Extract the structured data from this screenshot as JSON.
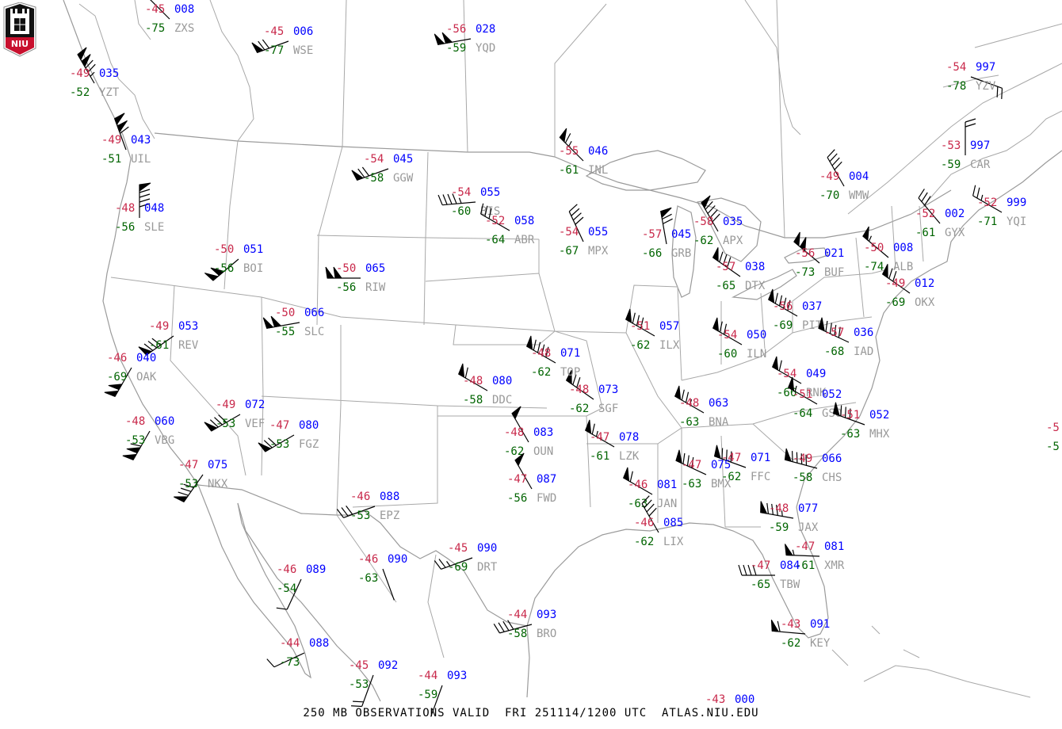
{
  "title": "250 MB OBSERVATIONS VALID  FRI 251114/1200 UTC  ATLAS.NIU.EDU",
  "logo": {
    "text": "NIU",
    "colors": {
      "shield": "#111111",
      "band": "#c8102e"
    }
  },
  "colors": {
    "temperature": "#c8284a",
    "height": "#0000ff",
    "dewpoint": "#006400",
    "station_id": "#999999",
    "map_lines": "#9a9a9a",
    "wind_barb": "#000000"
  },
  "stations": [
    {
      "id": "ZXS",
      "temp": "-45",
      "height": "008",
      "dewpoint": "-75",
      "wind_dir": 315,
      "wind_kt": 20
    },
    {
      "id": "WSE",
      "temp": "-45",
      "height": "006",
      "dewpoint": "-77",
      "wind_dir": 250,
      "wind_kt": 70
    },
    {
      "id": "YQD",
      "temp": "-56",
      "height": "028",
      "dewpoint": "-59",
      "wind_dir": 260,
      "wind_kt": 100
    },
    {
      "id": "YZT",
      "temp": "-49",
      "height": "035",
      "dewpoint": "-52",
      "wind_dir": 330,
      "wind_kt": 125
    },
    {
      "id": "UIL",
      "temp": "-49",
      "height": "043",
      "dewpoint": "-51",
      "wind_dir": 340,
      "wind_kt": 110
    },
    {
      "id": "SLE",
      "temp": "-48",
      "height": "048",
      "dewpoint": "-56",
      "wind_dir": 360,
      "wind_kt": 90
    },
    {
      "id": "GGW",
      "temp": "-54",
      "height": "045",
      "dewpoint": "-58",
      "wind_dir": 250,
      "wind_kt": 70
    },
    {
      "id": "BIS",
      "temp": "-54",
      "height": "055",
      "dewpoint": "-60",
      "wind_dir": 265,
      "wind_kt": 45
    },
    {
      "id": "ABR",
      "temp": "-52",
      "height": "058",
      "dewpoint": "-64",
      "wind_dir": 300,
      "wind_kt": 30
    },
    {
      "id": "INL",
      "temp": "-55",
      "height": "046",
      "dewpoint": "-61",
      "wind_dir": 315,
      "wind_kt": 65
    },
    {
      "id": "MPX",
      "temp": "-54",
      "height": "055",
      "dewpoint": "-67",
      "wind_dir": 335,
      "wind_kt": 40
    },
    {
      "id": "GRB",
      "temp": "-57",
      "height": "045",
      "dewpoint": "-66",
      "wind_dir": 350,
      "wind_kt": 70
    },
    {
      "id": "APX",
      "temp": "-58",
      "height": "035",
      "dewpoint": "-62",
      "wind_dir": 330,
      "wind_kt": 90
    },
    {
      "id": "DTX",
      "temp": "-57",
      "height": "038",
      "dewpoint": "-65",
      "wind_dir": 305,
      "wind_kt": 80
    },
    {
      "id": "BUF",
      "temp": "-56",
      "height": "021",
      "dewpoint": "-73",
      "wind_dir": 310,
      "wind_kt": 100
    },
    {
      "id": "PIT",
      "temp": "-56",
      "height": "037",
      "dewpoint": "-69",
      "wind_dir": 300,
      "wind_kt": 90
    },
    {
      "id": "WMW",
      "temp": "-49",
      "height": "004",
      "dewpoint": "-70",
      "wind_dir": 330,
      "wind_kt": 40
    },
    {
      "id": "YZV",
      "temp": "-54",
      "height": "997",
      "dewpoint": "-78",
      "wind_dir": 110,
      "wind_kt": 20
    },
    {
      "id": "CAR",
      "temp": "-53",
      "height": "997",
      "dewpoint": "-59",
      "wind_dir": 360,
      "wind_kt": 20
    },
    {
      "id": "GYX",
      "temp": "-52",
      "height": "002",
      "dewpoint": "-61",
      "wind_dir": 320,
      "wind_kt": 30
    },
    {
      "id": "YQI",
      "temp": "-52",
      "height": "999",
      "dewpoint": "-71",
      "wind_dir": 300,
      "wind_kt": 25
    },
    {
      "id": "ALB",
      "temp": "-50",
      "height": "008",
      "dewpoint": "-74",
      "wind_dir": 310,
      "wind_kt": 55
    },
    {
      "id": "OKX",
      "temp": "-49",
      "height": "012",
      "dewpoint": "-69",
      "wind_dir": 305,
      "wind_kt": 70
    },
    {
      "id": "IAD",
      "temp": "-57",
      "height": "036",
      "dewpoint": "-68",
      "wind_dir": 295,
      "wind_kt": 90
    },
    {
      "id": "ILX",
      "temp": "-51",
      "height": "057",
      "dewpoint": "-62",
      "wind_dir": 300,
      "wind_kt": 80
    },
    {
      "id": "ILN",
      "temp": "-54",
      "height": "050",
      "dewpoint": "-60",
      "wind_dir": 300,
      "wind_kt": 70
    },
    {
      "id": "RNK",
      "temp": "-54",
      "height": "049",
      "dewpoint": "-66",
      "wind_dir": 300,
      "wind_kt": 60
    },
    {
      "id": "GSO",
      "temp": "-51",
      "height": "052",
      "dewpoint": "-64",
      "wind_dir": 300,
      "wind_kt": 55
    },
    {
      "id": "MHX",
      "temp": "-51",
      "height": "052",
      "dewpoint": "-63",
      "wind_dir": 290,
      "wind_kt": 80
    },
    {
      "id": "CHS",
      "temp": "-49",
      "height": "066",
      "dewpoint": "-58",
      "wind_dir": 285,
      "wind_kt": 90
    },
    {
      "id": "FFC",
      "temp": "-47",
      "height": "071",
      "dewpoint": "-62",
      "wind_dir": 290,
      "wind_kt": 80
    },
    {
      "id": "BMX",
      "temp": "-47",
      "height": "075",
      "dewpoint": "-63",
      "wind_dir": 295,
      "wind_kt": 80
    },
    {
      "id": "JAX",
      "temp": "-48",
      "height": "077",
      "dewpoint": "-59",
      "wind_dir": 280,
      "wind_kt": 85
    },
    {
      "id": "XMR",
      "temp": "-47",
      "height": "081",
      "dewpoint": "-61",
      "wind_dir": 272,
      "wind_kt": 55
    },
    {
      "id": "TBW",
      "temp": "-47",
      "height": "084",
      "dewpoint": "-65",
      "wind_dir": 270,
      "wind_kt": 40
    },
    {
      "id": "KEY",
      "temp": "-43",
      "height": "091",
      "dewpoint": "-62",
      "wind_dir": 275,
      "wind_kt": 60
    },
    {
      "id": "BNA",
      "temp": "-48",
      "height": "063",
      "dewpoint": "-63",
      "wind_dir": 300,
      "wind_kt": 75
    },
    {
      "id": "LZK",
      "temp": "-47",
      "height": "078",
      "dewpoint": "-61",
      "wind_dir": 300,
      "wind_kt": 65
    },
    {
      "id": "JAN",
      "temp": "-46",
      "height": "081",
      "dewpoint": "-63",
      "wind_dir": 300,
      "wind_kt": 60
    },
    {
      "id": "LIX",
      "temp": "-46",
      "height": "085",
      "dewpoint": "-62",
      "wind_dir": 330,
      "wind_kt": 40
    },
    {
      "id": "SGF",
      "temp": "-48",
      "height": "073",
      "dewpoint": "-62",
      "wind_dir": 305,
      "wind_kt": 70
    },
    {
      "id": "TOP",
      "temp": "-48",
      "height": "071",
      "dewpoint": "-62",
      "wind_dir": 300,
      "wind_kt": 90
    },
    {
      "id": "DDC",
      "temp": "-48",
      "height": "080",
      "dewpoint": "-58",
      "wind_dir": 300,
      "wind_kt": 60
    },
    {
      "id": "OUN",
      "temp": "-48",
      "height": "083",
      "dewpoint": "-62",
      "wind_dir": 330,
      "wind_kt": 50
    },
    {
      "id": "FWD",
      "temp": "-47",
      "height": "087",
      "dewpoint": "-56",
      "wind_dir": 330,
      "wind_kt": 50
    },
    {
      "id": "EPZ",
      "temp": "-46",
      "height": "088",
      "dewpoint": "-53",
      "wind_dir": 250,
      "wind_kt": 30
    },
    {
      "id": "DRT",
      "temp": "-45",
      "height": "090",
      "dewpoint": "-69",
      "wind_dir": 250,
      "wind_kt": 25
    },
    {
      "id": "BRO",
      "temp": "-44",
      "height": "093",
      "dewpoint": "-58",
      "wind_dir": 255,
      "wind_kt": 40
    },
    {
      "id": "BOI",
      "temp": "-50",
      "height": "051",
      "dewpoint": "-56",
      "wind_dir": 230,
      "wind_kt": 100
    },
    {
      "id": "RIW",
      "temp": "-50",
      "height": "065",
      "dewpoint": "-56",
      "wind_dir": 270,
      "wind_kt": 100
    },
    {
      "id": "SLC",
      "temp": "-50",
      "height": "066",
      "dewpoint": "-55",
      "wind_dir": 260,
      "wind_kt": 100
    },
    {
      "id": "REV",
      "temp": "-49",
      "height": "053",
      "dewpoint": "-61",
      "wind_dir": 235,
      "wind_kt": 80
    },
    {
      "id": "OAK",
      "temp": "-46",
      "height": "040",
      "dewpoint": "-69",
      "wind_dir": 210,
      "wind_kt": 100
    },
    {
      "id": "VEF",
      "temp": "-49",
      "height": "072",
      "dewpoint": "-53",
      "wind_dir": 240,
      "wind_kt": 80
    },
    {
      "id": "FGZ",
      "temp": "-47",
      "height": "080",
      "dewpoint": "-53",
      "wind_dir": 240,
      "wind_kt": 70
    },
    {
      "id": "VBG",
      "temp": "-48",
      "height": "060",
      "dewpoint": "-53",
      "wind_dir": 210,
      "wind_kt": 110
    },
    {
      "id": "NKX",
      "temp": "-47",
      "height": "075",
      "dewpoint": "-53",
      "wind_dir": 215,
      "wind_kt": 80
    },
    {
      "id": "",
      "temp": "-46",
      "height": "089",
      "dewpoint": "-54",
      "wind_dir": 205,
      "wind_kt": 10
    },
    {
      "id": "",
      "temp": "-46",
      "height": "090",
      "dewpoint": "-63",
      "wind_dir": 160,
      "wind_kt": 0
    },
    {
      "id": "",
      "temp": "-44",
      "height": "088",
      "dewpoint": "-73",
      "wind_dir": 245,
      "wind_kt": 10
    },
    {
      "id": "",
      "temp": "-45",
      "height": "092",
      "dewpoint": "-53",
      "wind_dir": 200,
      "wind_kt": 20
    },
    {
      "id": "",
      "temp": "-44",
      "height": "093",
      "dewpoint": "-59",
      "wind_dir": 200,
      "wind_kt": 0
    },
    {
      "id": "",
      "temp": "-5",
      "height": "",
      "dewpoint": "-5",
      "wind_dir": null,
      "wind_kt": null
    },
    {
      "id": "",
      "temp": "-43",
      "height": "000",
      "dewpoint": "",
      "wind_dir": null,
      "wind_kt": null
    }
  ]
}
